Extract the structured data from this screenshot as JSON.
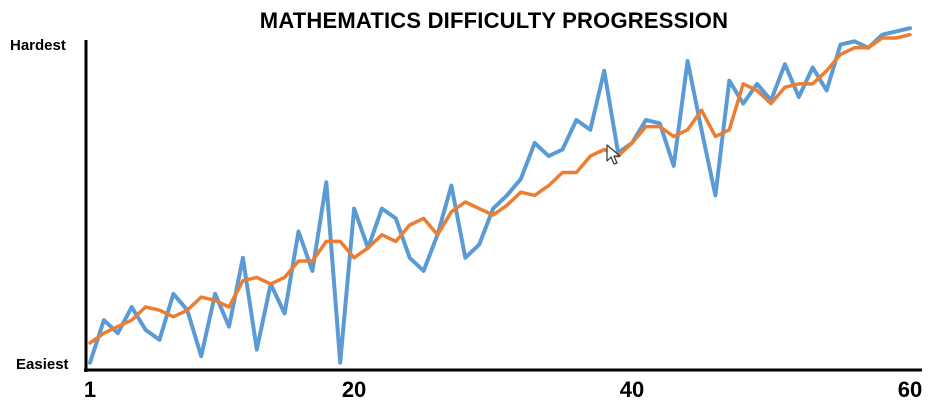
{
  "chart_data": {
    "type": "line",
    "title": "MATHEMATICS DIFFICULTY PROGRESSION",
    "ylabel_top": "Hardest",
    "ylabel_bottom": "Easiest",
    "xlim": [
      1,
      60
    ],
    "ylim": [
      0,
      100
    ],
    "x_ticks": [
      1,
      20,
      40,
      60
    ],
    "grid": false,
    "legend": "none",
    "series": [
      {
        "color": "#5b9bd5",
        "x": [
          1,
          2,
          3,
          4,
          5,
          6,
          7,
          8,
          9,
          10,
          11,
          12,
          13,
          14,
          15,
          16,
          17,
          18,
          19,
          20,
          21,
          22,
          23,
          24,
          25,
          26,
          27,
          28,
          29,
          30,
          31,
          32,
          33,
          34,
          35,
          36,
          37,
          38,
          39,
          40,
          41,
          42,
          43,
          44,
          45,
          46,
          47,
          48,
          49,
          50,
          51,
          52,
          53,
          54,
          55,
          56,
          57,
          58,
          59,
          60
        ],
        "values": [
          1,
          14,
          10,
          18,
          11,
          8,
          22,
          17,
          3,
          22,
          12,
          33,
          5,
          25,
          16,
          41,
          29,
          56,
          1,
          48,
          36,
          48,
          45,
          33,
          29,
          40,
          55,
          33,
          37,
          48,
          52,
          57,
          68,
          64,
          66,
          75,
          72,
          90,
          65,
          68,
          75,
          74,
          61,
          93,
          72,
          52,
          87,
          80,
          86,
          81,
          92,
          82,
          91,
          84,
          98,
          99,
          97,
          101,
          102,
          103
        ]
      },
      {
        "color": "#ed7d31",
        "x": [
          1,
          2,
          3,
          4,
          5,
          6,
          7,
          8,
          9,
          10,
          11,
          12,
          13,
          14,
          15,
          16,
          17,
          18,
          19,
          20,
          21,
          22,
          23,
          24,
          25,
          26,
          27,
          28,
          29,
          30,
          31,
          32,
          33,
          34,
          35,
          36,
          37,
          38,
          39,
          40,
          41,
          42,
          43,
          44,
          45,
          46,
          47,
          48,
          49,
          50,
          51,
          52,
          53,
          54,
          55,
          56,
          57,
          58,
          59,
          60
        ],
        "values": [
          7,
          10,
          12,
          14,
          18,
          17,
          15,
          17,
          21,
          20,
          18,
          26,
          27,
          25,
          27,
          32,
          32,
          38,
          38,
          33,
          36,
          40,
          38,
          43,
          45,
          40,
          47,
          50,
          48,
          46,
          49,
          53,
          52,
          55,
          59,
          59,
          64,
          66,
          64,
          68,
          73,
          73,
          70,
          72,
          78,
          70,
          72,
          86,
          84,
          80,
          85,
          86,
          86,
          90,
          95,
          97,
          97,
          100,
          100,
          101
        ]
      }
    ]
  }
}
